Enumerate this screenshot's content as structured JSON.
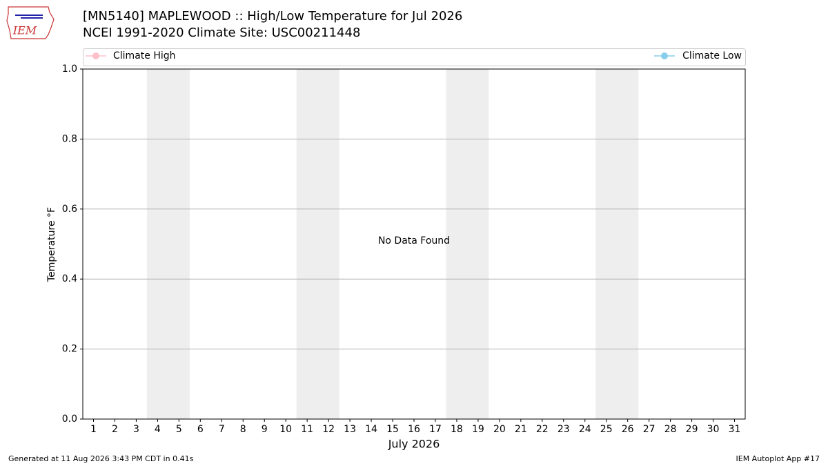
{
  "header": {
    "logo": "IEM"
  },
  "chart_data": {
    "type": "line",
    "title": "[MN5140] MAPLEWOOD :: High/Low Temperature for Jul 2026",
    "subtitle": "NCEI 1991-2020 Climate Site: USC00211448",
    "xlabel": "July 2026",
    "ylabel": "Temperature °F",
    "annotation": "No Data Found",
    "x": [
      1,
      2,
      3,
      4,
      5,
      6,
      7,
      8,
      9,
      10,
      11,
      12,
      13,
      14,
      15,
      16,
      17,
      18,
      19,
      20,
      21,
      22,
      23,
      24,
      25,
      26,
      27,
      28,
      29,
      30,
      31
    ],
    "series": [
      {
        "name": "Climate High",
        "color": "#ffc0cb",
        "values": [
          null,
          null,
          null,
          null,
          null,
          null,
          null,
          null,
          null,
          null,
          null,
          null,
          null,
          null,
          null,
          null,
          null,
          null,
          null,
          null,
          null,
          null,
          null,
          null,
          null,
          null,
          null,
          null,
          null,
          null,
          null
        ]
      },
      {
        "name": "Climate Low",
        "color": "#87ceeb",
        "values": [
          null,
          null,
          null,
          null,
          null,
          null,
          null,
          null,
          null,
          null,
          null,
          null,
          null,
          null,
          null,
          null,
          null,
          null,
          null,
          null,
          null,
          null,
          null,
          null,
          null,
          null,
          null,
          null,
          null,
          null,
          null
        ]
      }
    ],
    "shaded_x_ranges": [
      [
        3.5,
        5.5
      ],
      [
        10.5,
        12.5
      ],
      [
        17.5,
        19.5
      ],
      [
        24.5,
        26.5
      ]
    ],
    "shade_color": "#eeeeee",
    "xlim": [
      0.5,
      31.5
    ],
    "xticks": [
      1,
      2,
      3,
      4,
      5,
      6,
      7,
      8,
      9,
      10,
      11,
      12,
      13,
      14,
      15,
      16,
      17,
      18,
      19,
      20,
      21,
      22,
      23,
      24,
      25,
      26,
      27,
      28,
      29,
      30,
      31
    ],
    "ylim": [
      0,
      1
    ],
    "yticks": [
      {
        "value": 0,
        "label": "0.0"
      },
      {
        "value": 0.2,
        "label": "0.2"
      },
      {
        "value": 0.4,
        "label": "0.4"
      },
      {
        "value": 0.6,
        "label": "0.6"
      },
      {
        "value": 0.8,
        "label": "0.8"
      },
      {
        "value": 1,
        "label": "1.0"
      }
    ],
    "grid": true
  },
  "footer": {
    "left": "Generated at 11 Aug 2026 3:43 PM CDT in 0.41s",
    "right": "IEM Autoplot App #17"
  }
}
